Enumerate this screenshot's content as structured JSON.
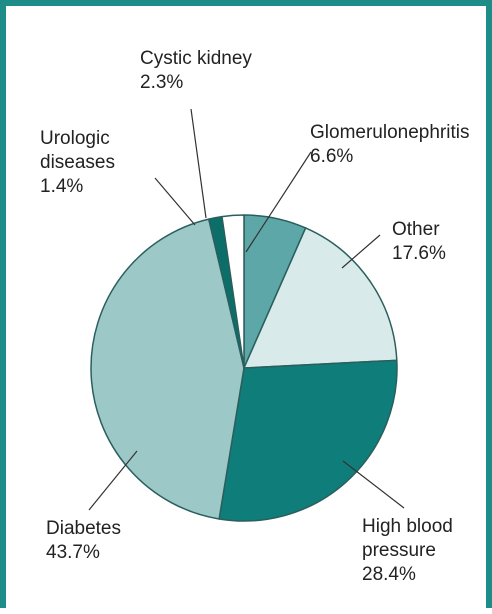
{
  "chart_data": {
    "type": "pie",
    "slices": [
      {
        "label_lines": [
          "Glomerulonephritis"
        ],
        "percent_label": "6.6%",
        "value": 6.6,
        "color": "#5ea7a8"
      },
      {
        "label_lines": [
          "Other"
        ],
        "percent_label": "17.6%",
        "value": 17.6,
        "color": "#d8eaea"
      },
      {
        "label_lines": [
          "High blood",
          "pressure"
        ],
        "percent_label": "28.4%",
        "value": 28.4,
        "color": "#0f7d79"
      },
      {
        "label_lines": [
          "Diabetes"
        ],
        "percent_label": "43.7%",
        "value": 43.7,
        "color": "#9cc9c8"
      },
      {
        "label_lines": [
          "Urologic",
          "diseases"
        ],
        "percent_label": "1.4%",
        "value": 1.4,
        "color": "#0c6e69"
      },
      {
        "label_lines": [
          "Cystic kidney"
        ],
        "percent_label": "2.3%",
        "value": 2.3,
        "color": "#ffffff"
      }
    ],
    "start_direction": "top, clockwise",
    "slice_border_color": "#2a5f5d",
    "frame_color": "#1e8c87"
  }
}
